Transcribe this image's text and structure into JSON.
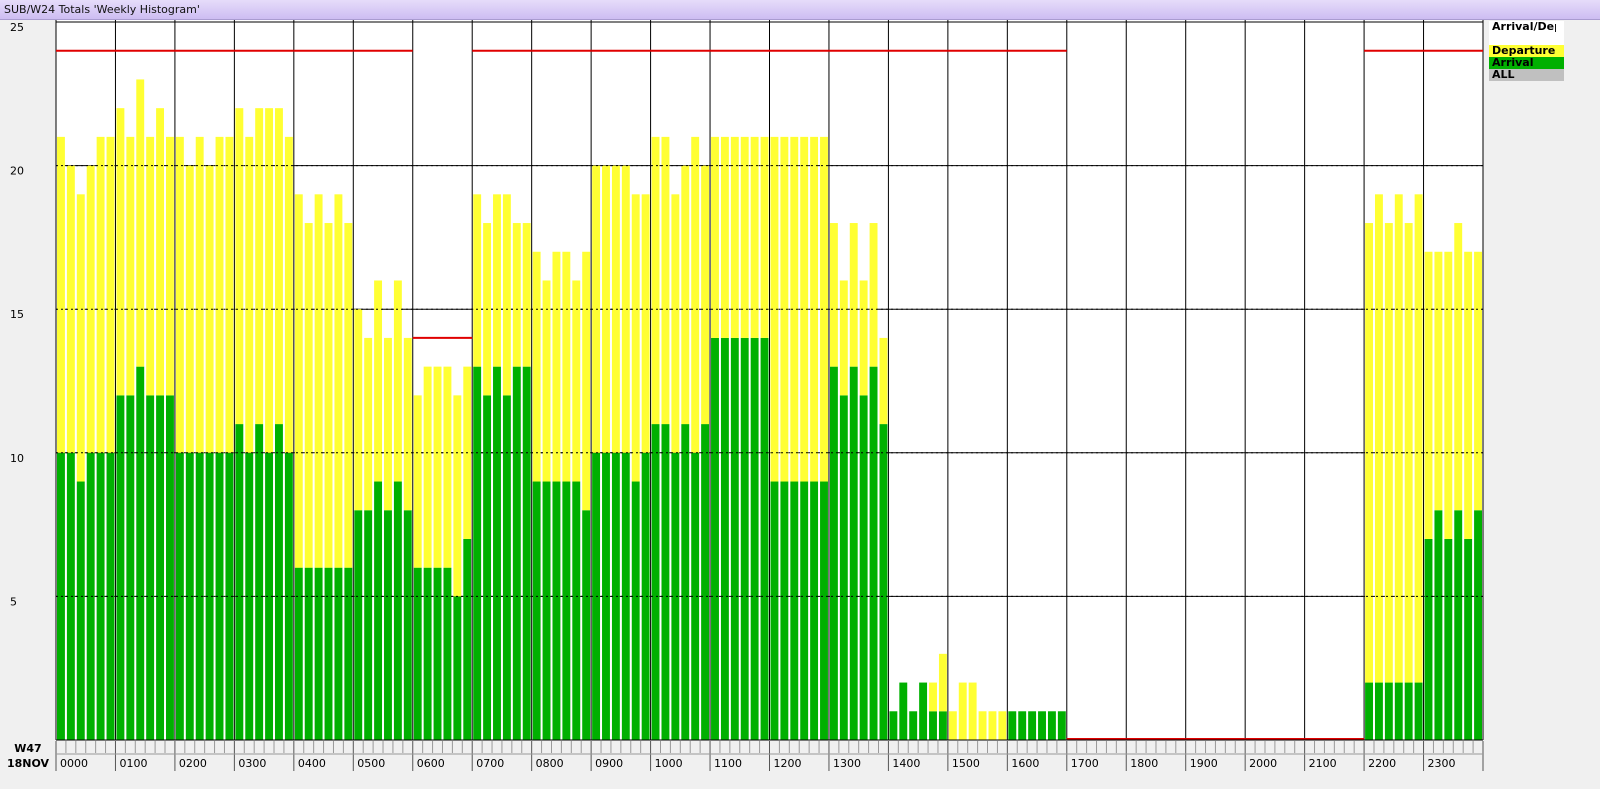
{
  "window_title": "SUB/W24 Totals 'Weekly Histogram'",
  "chart_data": {
    "type": "stacked-bar",
    "week_label": "W47",
    "date_label": "18NOV",
    "legend_title": "Arrival/Departure",
    "legend_extra": {
      "name": "ALL",
      "color": "#c0c0c0"
    },
    "categories": [
      "0000",
      null,
      null,
      null,
      null,
      null,
      "0100",
      null,
      null,
      null,
      null,
      null,
      "0200",
      null,
      null,
      null,
      null,
      null,
      "0300",
      null,
      null,
      null,
      null,
      null,
      "0400",
      null,
      null,
      null,
      null,
      null,
      "0500",
      null,
      null,
      null,
      null,
      null,
      "0600",
      null,
      null,
      null,
      null,
      null,
      "0700",
      null,
      null,
      null,
      null,
      null,
      "0800",
      null,
      null,
      null,
      null,
      null,
      "0900",
      null,
      null,
      null,
      null,
      null,
      "1000",
      null,
      null,
      null,
      null,
      null,
      "1100",
      null,
      null,
      null,
      null,
      null,
      "1200",
      null,
      null,
      null,
      null,
      null,
      "1300",
      null,
      null,
      null,
      null,
      null,
      "1400",
      null,
      null,
      null,
      null,
      null,
      "1500",
      null,
      null,
      null,
      null,
      null,
      "1600",
      null,
      null,
      null,
      null,
      null,
      "1700",
      null,
      null,
      null,
      null,
      null,
      "1800",
      null,
      null,
      null,
      null,
      null,
      "1900",
      null,
      null,
      null,
      null,
      null,
      "2000",
      null,
      null,
      null,
      null,
      null,
      "2100",
      null,
      null,
      null,
      null,
      null,
      "2200",
      null,
      null,
      null,
      null,
      null,
      "2300",
      null,
      null,
      null,
      null,
      null
    ],
    "series": [
      {
        "name": "Arrival",
        "color": "#00b000",
        "values": [
          10,
          10,
          9,
          10,
          10,
          10,
          12,
          12,
          13,
          12,
          12,
          12,
          10,
          10,
          10,
          10,
          10,
          10,
          11,
          10,
          11,
          10,
          11,
          10,
          6,
          6,
          6,
          6,
          6,
          6,
          8,
          8,
          9,
          8,
          9,
          8,
          6,
          6,
          6,
          6,
          5,
          7,
          13,
          12,
          13,
          12,
          13,
          13,
          9,
          9,
          9,
          9,
          9,
          8,
          10,
          10,
          10,
          10,
          9,
          10,
          11,
          11,
          10,
          11,
          10,
          11,
          14,
          14,
          14,
          14,
          14,
          14,
          9,
          9,
          9,
          9,
          9,
          9,
          13,
          12,
          13,
          12,
          13,
          11,
          1,
          2,
          1,
          2,
          1,
          1,
          0,
          0,
          0,
          0,
          0,
          0,
          1,
          1,
          1,
          1,
          1,
          1,
          0,
          0,
          0,
          0,
          0,
          0,
          0,
          0,
          0,
          0,
          0,
          0,
          0,
          0,
          0,
          0,
          0,
          0,
          0,
          0,
          0,
          0,
          0,
          0,
          0,
          0,
          0,
          0,
          0,
          0,
          2,
          2,
          2,
          2,
          2,
          2,
          7,
          8,
          7,
          8,
          7,
          8
        ]
      },
      {
        "name": "Departure",
        "color": "#ffff33",
        "values": [
          11,
          10,
          10,
          10,
          11,
          11,
          10,
          9,
          10,
          9,
          10,
          9,
          11,
          10,
          11,
          10,
          11,
          11,
          11,
          11,
          11,
          12,
          11,
          11,
          13,
          12,
          13,
          12,
          13,
          12,
          7,
          6,
          7,
          6,
          7,
          6,
          6,
          7,
          7,
          7,
          7,
          6,
          6,
          6,
          6,
          7,
          5,
          5,
          8,
          7,
          8,
          8,
          7,
          9,
          10,
          10,
          10,
          10,
          10,
          9,
          10,
          10,
          9,
          9,
          11,
          9,
          7,
          7,
          7,
          7,
          7,
          7,
          12,
          12,
          12,
          12,
          12,
          12,
          5,
          4,
          5,
          4,
          5,
          3,
          0,
          0,
          0,
          0,
          1,
          2,
          1,
          2,
          2,
          1,
          1,
          1,
          0,
          0,
          0,
          0,
          0,
          0,
          0,
          0,
          0,
          0,
          0,
          0,
          0,
          0,
          0,
          0,
          0,
          0,
          0,
          0,
          0,
          0,
          0,
          0,
          0,
          0,
          0,
          0,
          0,
          0,
          0,
          0,
          0,
          0,
          0,
          0,
          16,
          17,
          16,
          17,
          16,
          17,
          10,
          9,
          10,
          10,
          10,
          9
        ]
      }
    ],
    "limits": {
      "color": "#e00000",
      "values": [
        24,
        24,
        24,
        24,
        24,
        24,
        14,
        24,
        24,
        24,
        24,
        24,
        24,
        24,
        24,
        24,
        24,
        0,
        0,
        0,
        0,
        0,
        24,
        24
      ]
    },
    "ylim": [
      0,
      25
    ],
    "yticks": [
      5,
      10,
      15,
      20,
      25
    ],
    "grid": true
  }
}
